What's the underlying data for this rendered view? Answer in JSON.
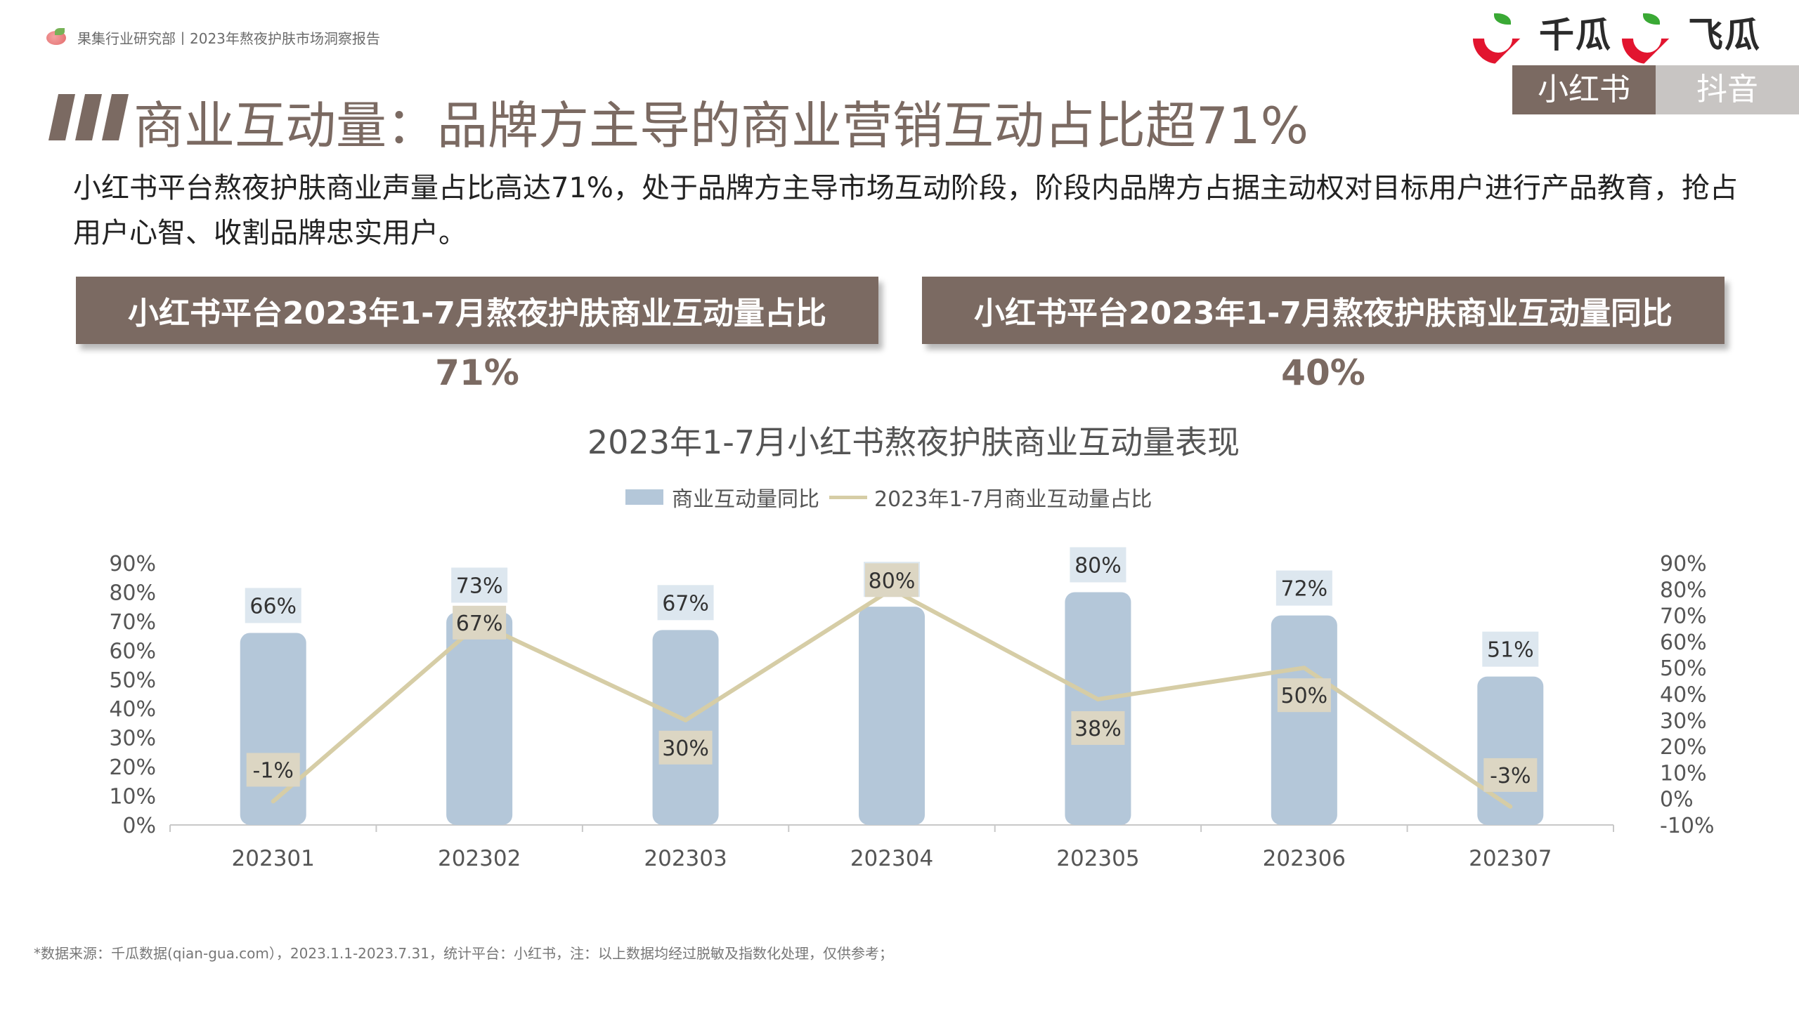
{
  "header": {
    "breadcrumb": "果集行业研究部丨2023年熬夜护肤市场洞察报告",
    "brands": [
      "千瓜",
      "飞瓜"
    ]
  },
  "tabs": [
    {
      "label": "小红书",
      "active": true
    },
    {
      "label": "抖音",
      "active": false
    }
  ],
  "title": "商业互动量：品牌方主导的商业营销互动占比超71%",
  "description": "小红书平台熬夜护肤商业声量占比高达71%，处于品牌方主导市场互动阶段，阶段内品牌方占据主动权对目标用户进行产品教育，抢占用户心智、收割品牌忠实用户。",
  "panels": [
    {
      "label": "小红书平台2023年1-7月熬夜护肤商业互动量占比",
      "value": "71%"
    },
    {
      "label": "小红书平台2023年1-7月熬夜护肤商业互动量同比",
      "value": "40%"
    }
  ],
  "colors": {
    "brown": "#7b6a62",
    "bar": "#b4c7d9",
    "bar_label_bg": "#dde7ef",
    "line": "#d6cda6",
    "line_label_bg": "#dcd6c3"
  },
  "chart_data": {
    "type": "bar",
    "title": "2023年1-7月小红书熬夜护肤商业互动量表现",
    "categories": [
      "202301",
      "202302",
      "202303",
      "202304",
      "202305",
      "202306",
      "202307"
    ],
    "series": [
      {
        "name": "商业互动量同比",
        "type": "bar",
        "axis": "left",
        "values": [
          66,
          73,
          67,
          75,
          80,
          72,
          51
        ],
        "labels": [
          "66%",
          "73%",
          "67%",
          "75%",
          "80%",
          "72%",
          "51%"
        ]
      },
      {
        "name": "2023年1-7月商业互动量占比",
        "type": "line",
        "axis": "right",
        "values": [
          -1,
          67,
          30,
          80,
          38,
          50,
          -3
        ],
        "labels": [
          "-1%",
          "67%",
          "30%",
          "80%",
          "38%",
          "50%",
          "-3%"
        ]
      }
    ],
    "yleft": {
      "min": 0,
      "max": 90,
      "ticks": [
        "0%",
        "10%",
        "20%",
        "30%",
        "40%",
        "50%",
        "60%",
        "70%",
        "80%",
        "90%"
      ]
    },
    "yright": {
      "min": -10,
      "max": 90,
      "ticks": [
        "-10%",
        "0%",
        "10%",
        "20%",
        "30%",
        "40%",
        "50%",
        "60%",
        "70%",
        "80%",
        "90%"
      ]
    },
    "grid": false,
    "legend": "top"
  },
  "footnote": "*数据来源：千瓜数据(qian-gua.com），2023.1.1-2023.7.31，统计平台：小红书，注：以上数据均经过脱敏及指数化处理，仅供参考；"
}
